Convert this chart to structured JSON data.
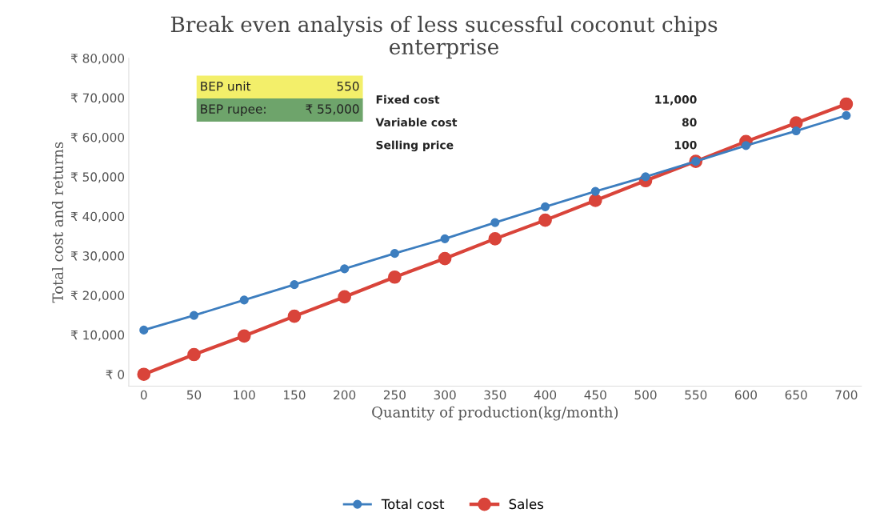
{
  "chart_data": {
    "type": "line",
    "title": "Break even analysis of less sucessful coconut chips\nenterprise",
    "xlabel": "Quantity of production(kg/month)",
    "ylabel": "Total cost and returns",
    "x": [
      0,
      50,
      100,
      150,
      200,
      250,
      300,
      350,
      400,
      450,
      500,
      550,
      600,
      650,
      700
    ],
    "series": [
      {
        "name": "Total cost",
        "color": "#3d7ebf",
        "values": [
          11200,
          14900,
          18800,
          22700,
          26700,
          30600,
          34300,
          38400,
          42400,
          46300,
          50000,
          53900,
          57900,
          61600,
          65500
        ]
      },
      {
        "name": "Sales",
        "color": "#d9443a",
        "values": [
          0,
          5000,
          9700,
          14700,
          19600,
          24600,
          29300,
          34300,
          39000,
          44000,
          49000,
          53900,
          58900,
          63600,
          68400
        ]
      }
    ],
    "xlim": [
      -15,
      715
    ],
    "xticks": [
      0,
      50,
      100,
      150,
      200,
      250,
      300,
      350,
      400,
      450,
      500,
      550,
      600,
      650,
      700
    ],
    "ylim": [
      -3000,
      80000
    ],
    "yticks": [
      {
        "value": 0,
        "label": "₹ 0"
      },
      {
        "value": 10000,
        "label": "₹ 10,000"
      },
      {
        "value": 20000,
        "label": "₹ 20,000"
      },
      {
        "value": 30000,
        "label": "₹ 30,000"
      },
      {
        "value": 40000,
        "label": "₹ 40,000"
      },
      {
        "value": 50000,
        "label": "₹ 50,000"
      },
      {
        "value": 60000,
        "label": "₹ 60,000"
      },
      {
        "value": 70000,
        "label": "₹ 70,000"
      },
      {
        "value": 80000,
        "label": "₹ 80,000"
      }
    ],
    "annotations": [
      "BEP unit",
      "550",
      "BEP rupee:",
      "₹ 55,000",
      "Fixed cost",
      "11,000",
      "Variable cost",
      "80",
      "Selling price",
      "100"
    ],
    "grid": false,
    "legend": "bottom",
    "marker": "circle",
    "line_style": "solid"
  }
}
